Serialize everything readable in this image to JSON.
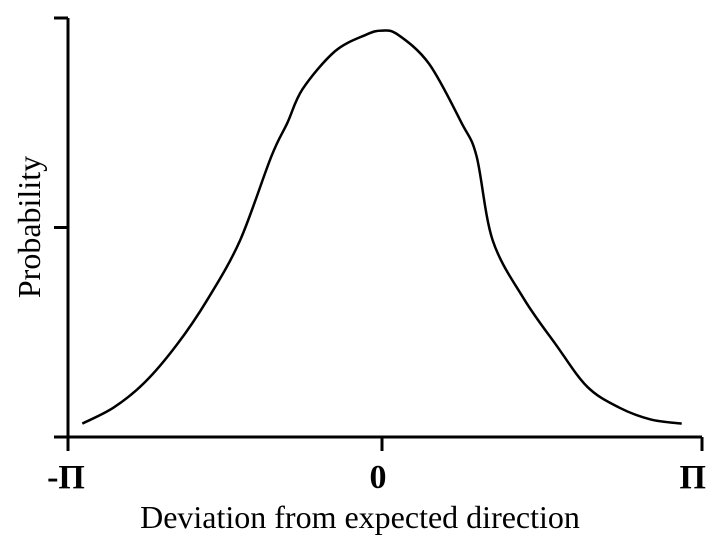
{
  "chart_data": {
    "type": "line",
    "title": "",
    "xlabel": "Deviation from expected direction",
    "ylabel": "Probability",
    "x_tick_labels": [
      "-Π",
      "0",
      "Π"
    ],
    "x_tick_values": [
      -3.14159,
      0,
      3.14159
    ],
    "y_ticks": [
      0,
      0.5,
      1.0
    ],
    "xlim": [
      -3.14159,
      3.14159
    ],
    "ylim": [
      0,
      1.0
    ],
    "grid": false,
    "series": [
      {
        "x": [
          -2.98,
          -2.67,
          -2.36,
          -2.04,
          -1.73,
          -1.41,
          -1.1,
          -0.94,
          -0.79,
          -0.47,
          -0.16,
          0,
          0.16,
          0.47,
          0.79,
          0.94,
          1.1,
          1.41,
          1.73,
          2.04,
          2.36,
          2.67,
          2.98
        ],
        "y": [
          0.032,
          0.07,
          0.13,
          0.22,
          0.33,
          0.47,
          0.67,
          0.75,
          0.83,
          0.92,
          0.96,
          0.97,
          0.96,
          0.89,
          0.75,
          0.67,
          0.47,
          0.33,
          0.22,
          0.12,
          0.07,
          0.042,
          0.032
        ]
      }
    ]
  }
}
